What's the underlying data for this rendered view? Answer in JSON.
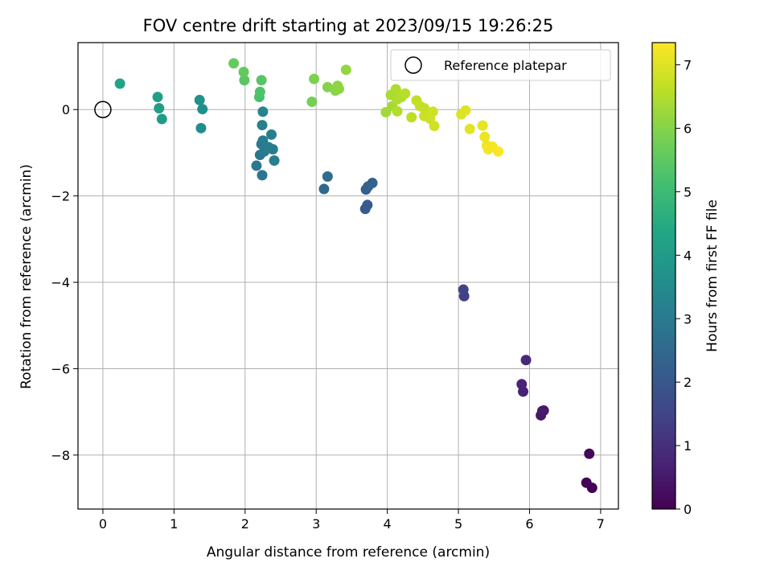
{
  "chart_data": {
    "type": "scatter",
    "title": "FOV centre drift starting at 2023/09/15 19:26:25",
    "xlabel": "Angular distance from reference (arcmin)",
    "ylabel": "Rotation from reference (arcmin)",
    "xlim": [
      -0.35,
      7.25
    ],
    "ylim": [
      -9.25,
      1.55
    ],
    "xticks": [
      0,
      1,
      2,
      3,
      4,
      5,
      6,
      7
    ],
    "yticks": [
      0,
      -2,
      -4,
      -6,
      -8
    ],
    "grid": true,
    "legend": {
      "position": "top-right",
      "entries": [
        "Reference platepar"
      ]
    },
    "reference_point": {
      "x": 0,
      "y": 0,
      "name": "Reference platepar"
    },
    "colorbar": {
      "label": "Hours from first FF file",
      "range": [
        0,
        7.35
      ],
      "ticks": [
        0,
        1,
        2,
        3,
        4,
        5,
        6,
        7
      ],
      "colormap": "viridis"
    },
    "points": [
      {
        "x": 6.88,
        "y": -8.76,
        "c": 0.0
      },
      {
        "x": 6.8,
        "y": -8.64,
        "c": 0.08
      },
      {
        "x": 6.84,
        "y": -7.97,
        "c": 0.17
      },
      {
        "x": 6.2,
        "y": -6.97,
        "c": 0.4
      },
      {
        "x": 6.16,
        "y": -7.08,
        "c": 0.45
      },
      {
        "x": 6.18,
        "y": -6.98,
        "c": 0.5
      },
      {
        "x": 5.91,
        "y": -6.53,
        "c": 0.7
      },
      {
        "x": 5.89,
        "y": -6.36,
        "c": 0.75
      },
      {
        "x": 5.95,
        "y": -5.8,
        "c": 0.85
      },
      {
        "x": 5.08,
        "y": -4.32,
        "c": 1.4
      },
      {
        "x": 5.07,
        "y": -4.17,
        "c": 1.45
      },
      {
        "x": 3.69,
        "y": -2.3,
        "c": 2.05
      },
      {
        "x": 3.72,
        "y": -2.21,
        "c": 2.1
      },
      {
        "x": 3.7,
        "y": -1.85,
        "c": 2.2
      },
      {
        "x": 3.73,
        "y": -1.78,
        "c": 2.25
      },
      {
        "x": 3.79,
        "y": -1.7,
        "c": 2.3
      },
      {
        "x": 3.11,
        "y": -1.84,
        "c": 2.5
      },
      {
        "x": 3.16,
        "y": -1.55,
        "c": 2.6
      },
      {
        "x": 2.24,
        "y": -1.52,
        "c": 2.85
      },
      {
        "x": 2.16,
        "y": -1.3,
        "c": 2.9
      },
      {
        "x": 2.21,
        "y": -1.05,
        "c": 2.95
      },
      {
        "x": 2.27,
        "y": -0.97,
        "c": 3.0
      },
      {
        "x": 2.23,
        "y": -0.8,
        "c": 3.0
      },
      {
        "x": 2.25,
        "y": -0.72,
        "c": 3.05
      },
      {
        "x": 2.33,
        "y": -0.87,
        "c": 3.1
      },
      {
        "x": 2.39,
        "y": -0.92,
        "c": 3.05
      },
      {
        "x": 2.41,
        "y": -1.18,
        "c": 3.1
      },
      {
        "x": 2.37,
        "y": -0.58,
        "c": 3.15
      },
      {
        "x": 2.24,
        "y": -0.36,
        "c": 3.2
      },
      {
        "x": 2.25,
        "y": -0.05,
        "c": 3.3
      },
      {
        "x": 1.38,
        "y": -0.43,
        "c": 3.6
      },
      {
        "x": 1.4,
        "y": 0.01,
        "c": 3.65
      },
      {
        "x": 1.36,
        "y": 0.22,
        "c": 3.7
      },
      {
        "x": 0.83,
        "y": -0.22,
        "c": 3.95
      },
      {
        "x": 0.79,
        "y": 0.03,
        "c": 4.05
      },
      {
        "x": 0.77,
        "y": 0.29,
        "c": 4.15
      },
      {
        "x": 0.24,
        "y": 0.6,
        "c": 4.3
      },
      {
        "x": 2.2,
        "y": 0.29,
        "c": 5.2
      },
      {
        "x": 2.21,
        "y": 0.41,
        "c": 5.3
      },
      {
        "x": 2.23,
        "y": 0.68,
        "c": 5.4
      },
      {
        "x": 1.99,
        "y": 0.68,
        "c": 5.45
      },
      {
        "x": 1.98,
        "y": 0.87,
        "c": 5.55
      },
      {
        "x": 1.84,
        "y": 1.07,
        "c": 5.6
      },
      {
        "x": 2.94,
        "y": 0.18,
        "c": 5.8
      },
      {
        "x": 2.97,
        "y": 0.71,
        "c": 5.9
      },
      {
        "x": 3.16,
        "y": 0.52,
        "c": 6.0
      },
      {
        "x": 3.27,
        "y": 0.44,
        "c": 6.05
      },
      {
        "x": 3.3,
        "y": 0.55,
        "c": 6.1
      },
      {
        "x": 3.32,
        "y": 0.48,
        "c": 6.1
      },
      {
        "x": 3.42,
        "y": 0.92,
        "c": 6.15
      },
      {
        "x": 3.98,
        "y": -0.06,
        "c": 6.3
      },
      {
        "x": 4.07,
        "y": 0.08,
        "c": 6.35
      },
      {
        "x": 4.05,
        "y": 0.34,
        "c": 6.4
      },
      {
        "x": 4.12,
        "y": 0.47,
        "c": 6.45
      },
      {
        "x": 4.14,
        "y": 0.24,
        "c": 6.45
      },
      {
        "x": 4.14,
        "y": -0.04,
        "c": 6.5
      },
      {
        "x": 4.2,
        "y": 0.29,
        "c": 6.5
      },
      {
        "x": 4.25,
        "y": 0.37,
        "c": 6.55
      },
      {
        "x": 4.34,
        "y": -0.18,
        "c": 6.6
      },
      {
        "x": 4.41,
        "y": 0.21,
        "c": 6.65
      },
      {
        "x": 4.46,
        "y": 0.08,
        "c": 6.7
      },
      {
        "x": 4.52,
        "y": 0.03,
        "c": 6.7
      },
      {
        "x": 4.52,
        "y": -0.15,
        "c": 6.75
      },
      {
        "x": 4.6,
        "y": -0.21,
        "c": 6.8
      },
      {
        "x": 4.64,
        "y": -0.05,
        "c": 6.8
      },
      {
        "x": 4.66,
        "y": -0.38,
        "c": 6.85
      },
      {
        "x": 5.04,
        "y": -0.11,
        "c": 6.95
      },
      {
        "x": 5.1,
        "y": -0.02,
        "c": 7.0
      },
      {
        "x": 5.16,
        "y": -0.45,
        "c": 7.05
      },
      {
        "x": 5.34,
        "y": -0.37,
        "c": 7.1
      },
      {
        "x": 5.37,
        "y": -0.63,
        "c": 7.15
      },
      {
        "x": 5.4,
        "y": -0.83,
        "c": 7.2
      },
      {
        "x": 5.42,
        "y": -0.92,
        "c": 7.25
      },
      {
        "x": 5.48,
        "y": -0.86,
        "c": 7.25
      },
      {
        "x": 5.56,
        "y": -0.97,
        "c": 7.3
      }
    ]
  }
}
